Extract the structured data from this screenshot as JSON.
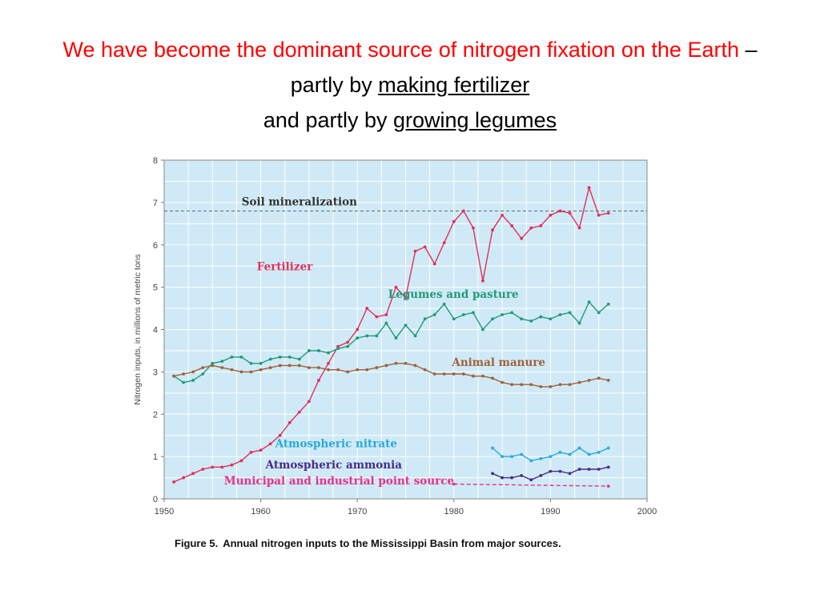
{
  "slide": {
    "title_red": "We have become the dominant source of nitrogen fixation on the Earth",
    "title_dash": " – partly by ",
    "title_link1": "making fertilizer",
    "title_mid": "and partly by ",
    "title_link2": "growing legumes"
  },
  "caption": {
    "label": "Figure 5.",
    "text": "Annual nitrogen inputs to the Mississippi Basin from major sources."
  },
  "colors": {
    "plot_bg": "#cfeaf6",
    "grid": "#ffffff",
    "fertilizer": "#e0305a",
    "legumes": "#1f9a78",
    "manure": "#a0603a",
    "nitrate": "#2aa8d8",
    "ammonia": "#4a2a8a",
    "municipal": "#e8308a",
    "soil": "#666666"
  },
  "chart_data": {
    "type": "line",
    "xlim": [
      1950,
      2000
    ],
    "ylim": [
      0,
      8
    ],
    "xticks": [
      1950,
      1960,
      1970,
      1980,
      1990,
      2000
    ],
    "yticks": [
      0,
      1,
      2,
      3,
      4,
      5,
      6,
      7,
      8
    ],
    "ylabel": "Nitrogen inputs, in millions of metric tons",
    "xlabel": "",
    "grid": true,
    "legend": "inline labels",
    "soil_label": "Soil mineralization",
    "soil_value": 6.8,
    "series": [
      {
        "name": "Fertilizer",
        "x": [
          1951,
          1952,
          1953,
          1954,
          1955,
          1956,
          1957,
          1958,
          1959,
          1960,
          1961,
          1962,
          1963,
          1964,
          1965,
          1966,
          1967,
          1968,
          1969,
          1970,
          1971,
          1972,
          1973,
          1974,
          1975,
          1976,
          1977,
          1978,
          1979,
          1980,
          1981,
          1982,
          1983,
          1984,
          1985,
          1986,
          1987,
          1988,
          1989,
          1990,
          1991,
          1992,
          1993,
          1994,
          1995,
          1996
        ],
        "values": [
          0.4,
          0.5,
          0.6,
          0.7,
          0.75,
          0.75,
          0.8,
          0.9,
          1.1,
          1.15,
          1.3,
          1.5,
          1.8,
          2.05,
          2.3,
          2.8,
          3.2,
          3.6,
          3.7,
          4.0,
          4.5,
          4.3,
          4.35,
          5.0,
          4.75,
          5.85,
          5.95,
          5.55,
          6.05,
          6.55,
          6.8,
          6.4,
          5.15,
          6.35,
          6.7,
          6.45,
          6.15,
          6.4,
          6.45,
          6.7,
          6.8,
          6.75,
          6.4,
          7.35,
          6.7,
          6.75
        ],
        "label_x": 1959.6,
        "label_y": 5.4
      },
      {
        "name": "Legumes and pasture",
        "x": [
          1951,
          1952,
          1953,
          1954,
          1955,
          1956,
          1957,
          1958,
          1959,
          1960,
          1961,
          1962,
          1963,
          1964,
          1965,
          1966,
          1967,
          1968,
          1969,
          1970,
          1971,
          1972,
          1973,
          1974,
          1975,
          1976,
          1977,
          1978,
          1979,
          1980,
          1981,
          1982,
          1983,
          1984,
          1985,
          1986,
          1987,
          1988,
          1989,
          1990,
          1991,
          1992,
          1993,
          1994,
          1995,
          1996
        ],
        "values": [
          2.9,
          2.75,
          2.8,
          2.95,
          3.2,
          3.25,
          3.35,
          3.35,
          3.2,
          3.2,
          3.3,
          3.35,
          3.35,
          3.3,
          3.5,
          3.5,
          3.45,
          3.55,
          3.6,
          3.8,
          3.85,
          3.85,
          4.15,
          3.8,
          4.1,
          3.85,
          4.25,
          4.35,
          4.6,
          4.25,
          4.35,
          4.4,
          4.0,
          4.25,
          4.35,
          4.4,
          4.25,
          4.2,
          4.3,
          4.25,
          4.35,
          4.4,
          4.15,
          4.65,
          4.4,
          4.6
        ],
        "label_x": 1973.2,
        "label_y": 4.75
      },
      {
        "name": "Animal manure",
        "x": [
          1951,
          1952,
          1953,
          1954,
          1955,
          1956,
          1957,
          1958,
          1959,
          1960,
          1961,
          1962,
          1963,
          1964,
          1965,
          1966,
          1967,
          1968,
          1969,
          1970,
          1971,
          1972,
          1973,
          1974,
          1975,
          1976,
          1977,
          1978,
          1979,
          1980,
          1981,
          1982,
          1983,
          1984,
          1985,
          1986,
          1987,
          1988,
          1989,
          1990,
          1991,
          1992,
          1993,
          1994,
          1995,
          1996
        ],
        "values": [
          2.9,
          2.95,
          3.0,
          3.1,
          3.15,
          3.1,
          3.05,
          3.0,
          3.0,
          3.05,
          3.1,
          3.15,
          3.15,
          3.15,
          3.1,
          3.1,
          3.05,
          3.05,
          3.0,
          3.05,
          3.05,
          3.1,
          3.15,
          3.2,
          3.2,
          3.15,
          3.05,
          2.95,
          2.95,
          2.95,
          2.95,
          2.9,
          2.9,
          2.85,
          2.75,
          2.7,
          2.7,
          2.7,
          2.65,
          2.65,
          2.7,
          2.7,
          2.75,
          2.8,
          2.85,
          2.8
        ],
        "label_x": 1979.8,
        "label_y": 3.14
      },
      {
        "name": "Atmospheric nitrate",
        "x": [
          1984,
          1985,
          1986,
          1987,
          1988,
          1989,
          1990,
          1991,
          1992,
          1993,
          1994,
          1995,
          1996
        ],
        "values": [
          1.2,
          1.0,
          1.0,
          1.05,
          0.9,
          0.95,
          1.0,
          1.1,
          1.05,
          1.2,
          1.05,
          1.1,
          1.2
        ],
        "label_x": 1961.5,
        "label_y": 1.22
      },
      {
        "name": "Atmospheric ammonia",
        "x": [
          1984,
          1985,
          1986,
          1987,
          1988,
          1989,
          1990,
          1991,
          1992,
          1993,
          1994,
          1995,
          1996
        ],
        "values": [
          0.6,
          0.5,
          0.5,
          0.55,
          0.45,
          0.55,
          0.65,
          0.65,
          0.6,
          0.7,
          0.7,
          0.7,
          0.75
        ],
        "label_x": 1960.5,
        "label_y": 0.72
      },
      {
        "name": "Municipal and industrial point source",
        "x": [
          1980,
          1996
        ],
        "values": [
          0.35,
          0.3
        ],
        "dashed": true,
        "label_x": 1956.2,
        "label_y": 0.34
      }
    ]
  }
}
